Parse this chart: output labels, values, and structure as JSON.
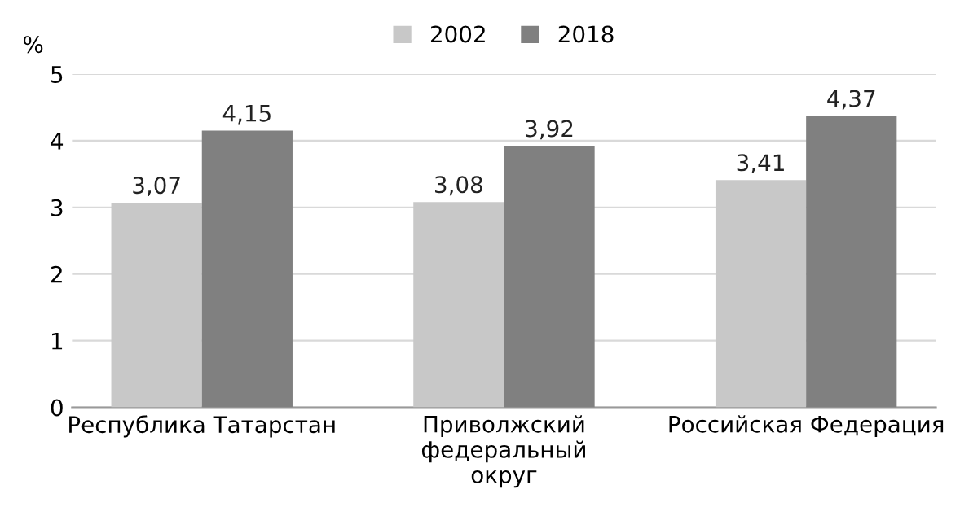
{
  "chart_data": {
    "type": "bar",
    "ylabel": "%",
    "categories": [
      "Республика Татарстан",
      "Приволжский\nфедеральный\nокруг",
      "Российская Федерация"
    ],
    "series": [
      {
        "name": "2002",
        "color": "#c8c8c8",
        "values": [
          3.07,
          3.08,
          3.41
        ],
        "value_labels": [
          "3,07",
          "3,08",
          "3,41"
        ]
      },
      {
        "name": "2018",
        "color": "#808080",
        "values": [
          4.15,
          3.92,
          4.37
        ],
        "value_labels": [
          "4,15",
          "3,92",
          "4,37"
        ]
      }
    ],
    "ylim": [
      0,
      5
    ],
    "yticks": [
      0,
      1,
      2,
      3,
      4,
      5
    ],
    "grid": "y",
    "legend": "top"
  }
}
